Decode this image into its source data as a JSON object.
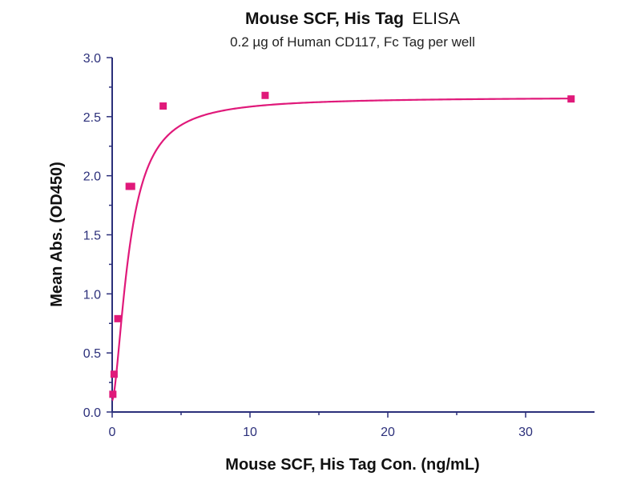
{
  "chart_data": {
    "type": "scatter",
    "title_bold": "Mouse SCF, His Tag",
    "title_normal": "ELISA",
    "subtitle": "0.2 µg of Human CD117, Fc Tag per well",
    "xlabel": "Mouse SCF, His Tag Con. (ng/mL)",
    "ylabel": "Mean Abs. (OD450)",
    "xlim": [
      0,
      35
    ],
    "ylim": [
      0,
      3.0
    ],
    "x_ticks": [
      0,
      10,
      20,
      30
    ],
    "y_ticks": [
      0.0,
      0.5,
      1.0,
      1.5,
      2.0,
      2.5,
      3.0
    ],
    "y_tick_labels": [
      "0.0",
      "0.5",
      "1.0",
      "1.5",
      "2.0",
      "2.5",
      "3.0"
    ],
    "grid": false,
    "series": [
      {
        "color": "#e0197a",
        "x": [
          0.05,
          0.14,
          0.41,
          1.23,
          1.41,
          3.7,
          11.1,
          33.3
        ],
        "y": [
          0.15,
          0.32,
          0.79,
          1.91,
          1.91,
          2.59,
          2.68,
          2.65
        ],
        "fit": "4PL"
      }
    ]
  }
}
